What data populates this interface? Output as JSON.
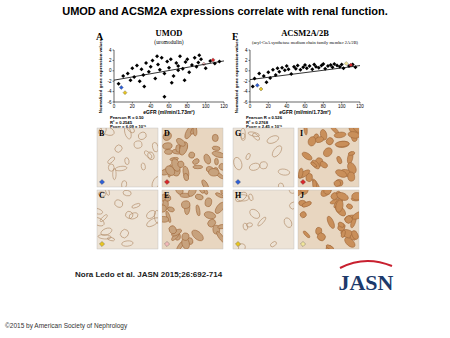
{
  "title": "UMOD and ACSM2A expressions correlate with renal function.",
  "citation": "Nora Ledo et al. JASN 2015;26:692-714",
  "copyright": "©2015 by American Society of Nephrology",
  "logo": "JASN",
  "micrographs": [
    {
      "label": "B",
      "marker_color": "#2e5fd6"
    },
    {
      "label": "C",
      "marker_color": "#e8c521"
    },
    {
      "label": "D",
      "marker_color": "#d8262a"
    },
    {
      "label": "E",
      "marker_color": "#f2b8b8"
    },
    {
      "label": "G",
      "marker_color": "#2e5fd6"
    },
    {
      "label": "H",
      "marker_color": "#e8c521"
    },
    {
      "label": "I",
      "marker_color": "#d8262a"
    },
    {
      "label": "J",
      "marker_color": "#f0e59a"
    }
  ],
  "chart_data": [
    {
      "type": "scatter",
      "panel_label": "A",
      "title": "UMOD",
      "subtitle": "(uromodulin)",
      "x_label": "eGFR (ml/min/1.73m²)",
      "y_label": "Normalized gene expression values",
      "annotations": [
        "Pearson R = 0.50",
        "R² = 0.2545",
        "Pcorr = 6.09 x 10⁻⁶"
      ],
      "xlim": [
        0,
        120
      ],
      "xticks": [
        0,
        20,
        40,
        60,
        80,
        100,
        120
      ],
      "ylim": [
        -6,
        4
      ],
      "yticks": [
        -6,
        -4,
        -2,
        0,
        2,
        4
      ],
      "grid": false,
      "series": [
        {
          "type": "scatter",
          "marker": "diamond",
          "color": "#000000",
          "x": [
            5,
            10,
            15,
            18,
            20,
            22,
            25,
            28,
            30,
            32,
            35,
            38,
            40,
            42,
            45,
            48,
            50,
            52,
            55,
            58,
            60,
            62,
            65,
            68,
            70,
            72,
            75,
            78,
            80,
            82,
            85,
            88,
            90,
            92,
            95,
            100,
            105,
            110,
            115,
            33,
            47,
            63,
            77,
            93,
            55,
            70
          ],
          "values": [
            -2.5,
            -1,
            -0.5,
            -1.8,
            0.5,
            -1.2,
            1,
            -2,
            0.3,
            -0.8,
            1.5,
            -0.2,
            0.8,
            2,
            -1.5,
            1.2,
            0.2,
            2.5,
            -0.5,
            1.8,
            0.6,
            2.2,
            -1,
            1.5,
            0.9,
            2.8,
            0.4,
            1.7,
            2.2,
            -0.3,
            1.1,
            2.5,
            0.8,
            1.6,
            2.2,
            0.5,
            1.9,
            1.4,
            1.8,
            -3,
            2.8,
            -2.3,
            -1.8,
            3,
            -5,
            0.1
          ]
        },
        {
          "type": "scatter",
          "marker": "diamond",
          "colors": [
            "#2e5fd6",
            "#e8c521",
            "#f2b8b8",
            "#d8262a"
          ],
          "x": [
            8,
            12,
            98,
            108
          ],
          "values": [
            -3.2,
            -4.2,
            1.3,
            2.1
          ]
        },
        {
          "type": "line",
          "line_style": "solid",
          "color": "#000000",
          "x": [
            0,
            120
          ],
          "values": [
            -1.8,
            1.9
          ]
        }
      ]
    },
    {
      "type": "scatter",
      "panel_label": "F",
      "title": "ACSM2A/2B",
      "subtitle": "(acyl-CoA synthetase medium chain family member 2A/2B)",
      "x_label": "eGFR (ml/min/1.73m²)",
      "y_label": "Normalized gene expression values",
      "annotations": [
        "Pearson R = 0.526",
        "R² = 0.2768",
        "Pcorr = 2.45 x 10⁻⁶"
      ],
      "xlim": [
        0,
        120
      ],
      "xticks": [
        0,
        20,
        40,
        60,
        80,
        100,
        120
      ],
      "ylim": [
        -6,
        4
      ],
      "yticks": [
        -6,
        -4,
        -2,
        0,
        2,
        4
      ],
      "grid": false,
      "series": [
        {
          "type": "scatter",
          "marker": "diamond",
          "color": "#000000",
          "x": [
            3,
            5,
            10,
            15,
            18,
            20,
            22,
            25,
            28,
            30,
            32,
            35,
            38,
            40,
            42,
            45,
            48,
            50,
            52,
            55,
            58,
            60,
            62,
            65,
            68,
            70,
            72,
            75,
            78,
            80,
            82,
            85,
            88,
            90,
            92,
            95,
            98,
            100,
            102,
            108,
            112,
            115
          ],
          "values": [
            -3,
            -1.5,
            -0.5,
            -1,
            -2.2,
            -0.3,
            -1.4,
            0.2,
            -0.8,
            0.5,
            -0.2,
            0.6,
            0.1,
            0.9,
            0.3,
            -0.6,
            0.8,
            0.4,
            1,
            0.2,
            0.7,
            1.1,
            0.5,
            0.9,
            0.3,
            1.2,
            0.8,
            0.6,
            1,
            1.3,
            0.4,
            0.9,
            1.1,
            0.7,
            1.3,
            1,
            0.8,
            1.2,
            0.5,
            0.9,
            1.2,
            0.7
          ]
        },
        {
          "type": "scatter",
          "marker": "diamond",
          "colors": [
            "#2e5fd6",
            "#e8c521",
            "#f0e59a",
            "#d8262a"
          ],
          "x": [
            8,
            12,
            105,
            110
          ],
          "values": [
            -2.8,
            -3.5,
            1.4,
            1.1
          ]
        },
        {
          "type": "line",
          "line_style": "solid",
          "color": "#000000",
          "x": [
            0,
            120
          ],
          "values": [
            -1.7,
            1.0
          ]
        }
      ]
    }
  ]
}
